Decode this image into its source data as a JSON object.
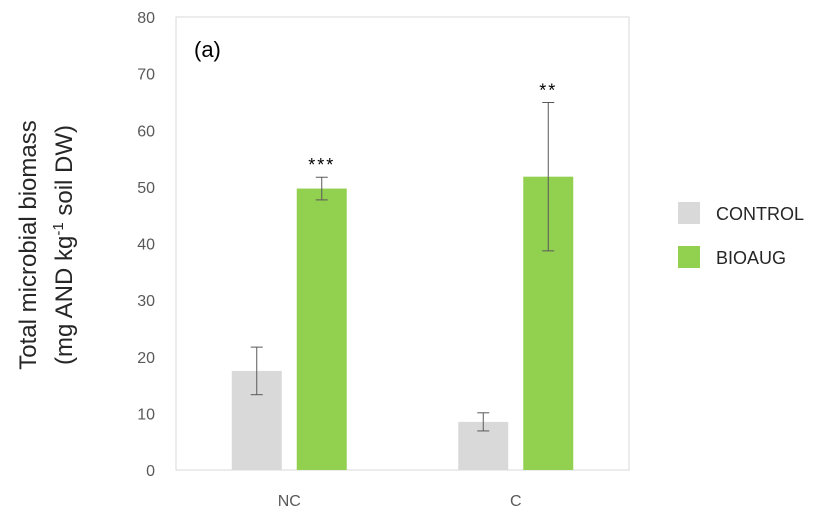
{
  "chart_data": {
    "type": "bar",
    "panel_label": "(a)",
    "ylabel": {
      "line1": "Total microbial biomass",
      "line2_pre": "(mg AND kg",
      "line2_sup": "-1",
      "line2_post": " soil DW)"
    },
    "xlabel": "",
    "categories": [
      "NC",
      "C"
    ],
    "ylim": [
      0,
      80
    ],
    "yticks": [
      "0",
      "10",
      "20",
      "30",
      "40",
      "50",
      "60",
      "70",
      "80"
    ],
    "grid": false,
    "legend_position": "right",
    "series": [
      {
        "name": "CONTROL",
        "color": "#d9d9d9",
        "values": [
          17.5,
          8.5
        ],
        "errors": [
          4.2,
          1.6
        ]
      },
      {
        "name": "BIOAUG",
        "color": "#92d050",
        "values": [
          49.7,
          51.8
        ],
        "errors": [
          2.0,
          13.1
        ]
      }
    ],
    "annotations": [
      {
        "category": "NC",
        "series": "BIOAUG",
        "text": "***"
      },
      {
        "category": "C",
        "series": "BIOAUG",
        "text": "**"
      }
    ]
  }
}
